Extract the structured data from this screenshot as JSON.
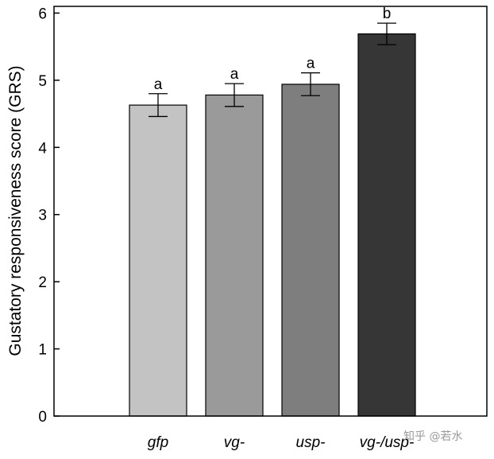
{
  "chart_data": {
    "type": "bar",
    "categories": [
      "gfp",
      "vg-",
      "usp-",
      "vg-/usp-"
    ],
    "values": [
      4.63,
      4.78,
      4.94,
      5.69
    ],
    "errors": [
      0.17,
      0.17,
      0.17,
      0.16
    ],
    "significance": [
      "a",
      "a",
      "a",
      "b"
    ],
    "colors": [
      "#c3c3c3",
      "#9a9a9a",
      "#7e7e7e",
      "#363636"
    ],
    "ylabel": "Gustatory responsiveness score (GRS)",
    "xlabel": "",
    "ylim": [
      0,
      6.1
    ],
    "yticks": [
      "0",
      "1",
      "2",
      "3",
      "4",
      "5",
      "6"
    ],
    "grid": false
  },
  "watermark": "知乎 @若水"
}
